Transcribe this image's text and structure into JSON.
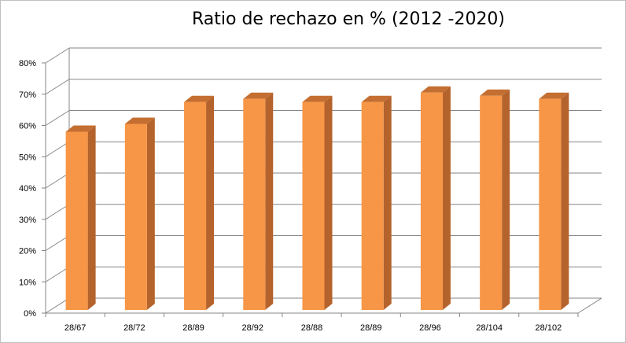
{
  "chart_data": {
    "type": "bar",
    "title": "Ratio de rechazo en % (2012 -2020)",
    "categories": [
      "28/67",
      "28/72",
      "28/89",
      "28/92",
      "28/88",
      "28/89",
      "28/96",
      "28/104",
      "28/102"
    ],
    "values": [
      0.58,
      0.605,
      0.675,
      0.685,
      0.675,
      0.675,
      0.705,
      0.695,
      0.685
    ],
    "ylim": [
      0,
      0.8
    ],
    "yticks": [
      0,
      0.1,
      0.2,
      0.3,
      0.4,
      0.5,
      0.6,
      0.7,
      0.8
    ],
    "ytick_labels": [
      "0%",
      "10%",
      "20%",
      "30%",
      "40%",
      "50%",
      "60%",
      "70%",
      "80%"
    ],
    "grid": true,
    "style": "3d-column",
    "colors": {
      "bar_front": "#f79646",
      "bar_side": "#b5632d",
      "bar_top": "#c46f31",
      "grid": "#868686"
    }
  }
}
